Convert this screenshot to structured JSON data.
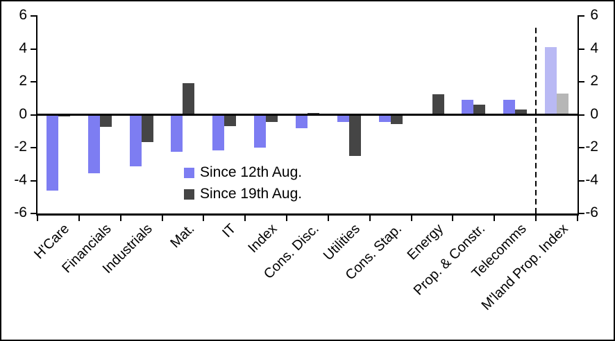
{
  "chart_data": {
    "type": "bar",
    "title": "",
    "categories": [
      "H'Care",
      "Financials",
      "Industrials",
      "Mat.",
      "IT",
      "Index",
      "Cons. Disc.",
      "Utilities",
      "Cons. Stap.",
      "Energy",
      "Prop. & Constr.",
      "Telecomms",
      "M'land Prop. Index"
    ],
    "series": [
      {
        "name": "Since 12th Aug.",
        "color": "#7d7df2",
        "highlight_color": "#b9b9f4",
        "values": [
          -4.6,
          -3.55,
          -3.15,
          -2.25,
          -2.15,
          -2.0,
          -0.8,
          -0.45,
          -0.45,
          0,
          0.9,
          0.9,
          4.1
        ]
      },
      {
        "name": "Since 19th Aug.",
        "color": "#454545",
        "highlight_color": "#b6b6b6",
        "values": [
          -0.1,
          -0.75,
          -1.65,
          1.9,
          -0.7,
          -0.45,
          0.1,
          -2.5,
          -0.55,
          1.25,
          0.6,
          0.3,
          1.3
        ]
      }
    ],
    "ylim": [
      -6,
      6
    ],
    "yticks": [
      6,
      4,
      2,
      0,
      -2,
      -4,
      -6
    ],
    "dual_axis": true,
    "grid": false,
    "legend_position": "inside-lower-left",
    "separator_before_index": 12,
    "highlight_category": "M'land Prop. Index",
    "axis_color": "#000000"
  }
}
